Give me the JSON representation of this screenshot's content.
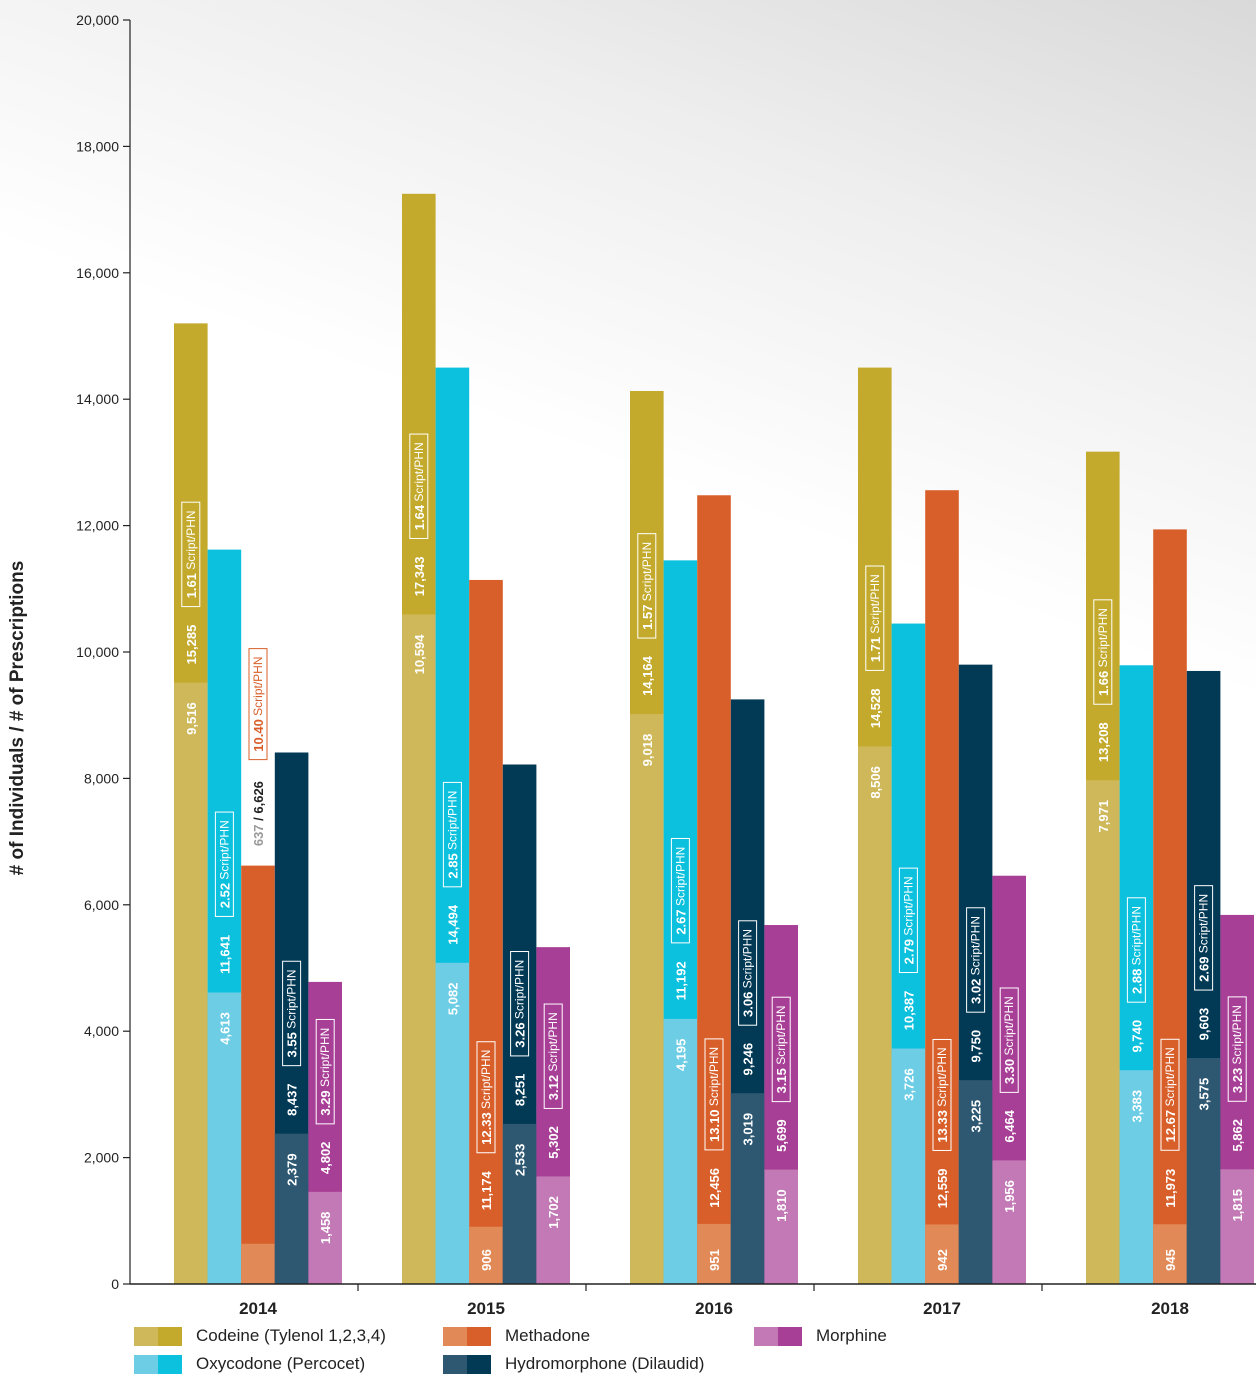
{
  "chart_data": {
    "type": "bar",
    "ylabel": "# of Individuals / # of Prescriptions",
    "xlabel": "",
    "ylim": [
      0,
      20000
    ],
    "yticks": [
      0,
      2000,
      4000,
      6000,
      8000,
      10000,
      12000,
      14000,
      16000,
      18000,
      20000
    ],
    "ytick_labels": [
      "0",
      "2,000",
      "4,000",
      "6,000",
      "8,000",
      "10,000",
      "12,000",
      "14,000",
      "16,000",
      "18,000",
      "20,000"
    ],
    "categories": [
      "2014",
      "2015",
      "2016",
      "2017",
      "2018"
    ],
    "ratio_suffix": "Script/PHN",
    "legend_position": "bottom",
    "series": [
      {
        "name": "Codeine (Tylenol 1,2,3,4)",
        "color_individuals": "#cfb85a",
        "color_prescriptions": "#c3aa2c",
        "individuals": [
          9516,
          10594,
          9018,
          8506,
          7971
        ],
        "individuals_labels": [
          "9,516",
          "10,594",
          "9,018",
          "8,506",
          "7,971"
        ],
        "prescriptions": [
          15285,
          17343,
          14164,
          14528,
          13208
        ],
        "prescriptions_labels": [
          "15,285",
          "17,343",
          "14,164",
          "14,528",
          "13,208"
        ],
        "ratio": [
          "1.61",
          "1.64",
          "1.57",
          "1.71",
          "1.66"
        ],
        "bar_top": [
          15200,
          17250,
          14130,
          14500,
          13170
        ]
      },
      {
        "name": "Oxycodone (Percocet)",
        "color_individuals": "#6ccde5",
        "color_prescriptions": "#0cc1de",
        "individuals": [
          4613,
          5082,
          4195,
          3726,
          3383
        ],
        "individuals_labels": [
          "4,613",
          "5,082",
          "4,195",
          "3,726",
          "3,383"
        ],
        "prescriptions": [
          11641,
          14494,
          11192,
          10387,
          9740
        ],
        "prescriptions_labels": [
          "11,641",
          "14,494",
          "11,192",
          "10,387",
          "9,740"
        ],
        "ratio": [
          "2.52",
          "2.85",
          "2.67",
          "2.79",
          "2.88"
        ],
        "bar_top": [
          11620,
          14500,
          11450,
          10450,
          9790
        ]
      },
      {
        "name": "Methadone",
        "color_individuals": "#e28a57",
        "color_prescriptions": "#d85f2a",
        "individuals": [
          637,
          906,
          951,
          942,
          945
        ],
        "individuals_labels": [
          "637",
          "906",
          "951",
          "942",
          "945"
        ],
        "prescriptions": [
          6626,
          11174,
          12456,
          12559,
          11973
        ],
        "prescriptions_labels": [
          "6,626",
          "11,174",
          "12,456",
          "12,559",
          "11,973"
        ],
        "ratio": [
          "10.40",
          "12.33",
          "13.10",
          "13.33",
          "12.67"
        ],
        "bar_top": [
          6620,
          11140,
          12480,
          12560,
          11940
        ]
      },
      {
        "name": "Hydromorphone (Dilaudid)",
        "color_individuals": "#2e5872",
        "color_prescriptions": "#023955",
        "individuals": [
          2379,
          2533,
          3019,
          3225,
          3575
        ],
        "individuals_labels": [
          "2,379",
          "2,533",
          "3,019",
          "3,225",
          "3,575"
        ],
        "prescriptions": [
          8437,
          8251,
          9246,
          9750,
          9603
        ],
        "prescriptions_labels": [
          "8,437",
          "8,251",
          "9,246",
          "9,750",
          "9,603"
        ],
        "ratio": [
          "3.55",
          "3.26",
          "3.06",
          "3.02",
          "2.69"
        ],
        "bar_top": [
          8410,
          8220,
          9250,
          9800,
          9700
        ]
      },
      {
        "name": "Morphine",
        "color_individuals": "#c279b5",
        "color_prescriptions": "#a83f96",
        "individuals": [
          1458,
          1702,
          1810,
          1956,
          1815
        ],
        "individuals_labels": [
          "1,458",
          "1,702",
          "1,810",
          "1,956",
          "1,815"
        ],
        "prescriptions": [
          4802,
          5302,
          5699,
          6464,
          5862
        ],
        "prescriptions_labels": [
          "4,802",
          "5,302",
          "5,699",
          "6,464",
          "5,862"
        ],
        "ratio": [
          "3.29",
          "3.12",
          "3.15",
          "3.30",
          "3.23"
        ],
        "bar_top": [
          4780,
          5330,
          5680,
          6460,
          5840
        ]
      }
    ]
  }
}
